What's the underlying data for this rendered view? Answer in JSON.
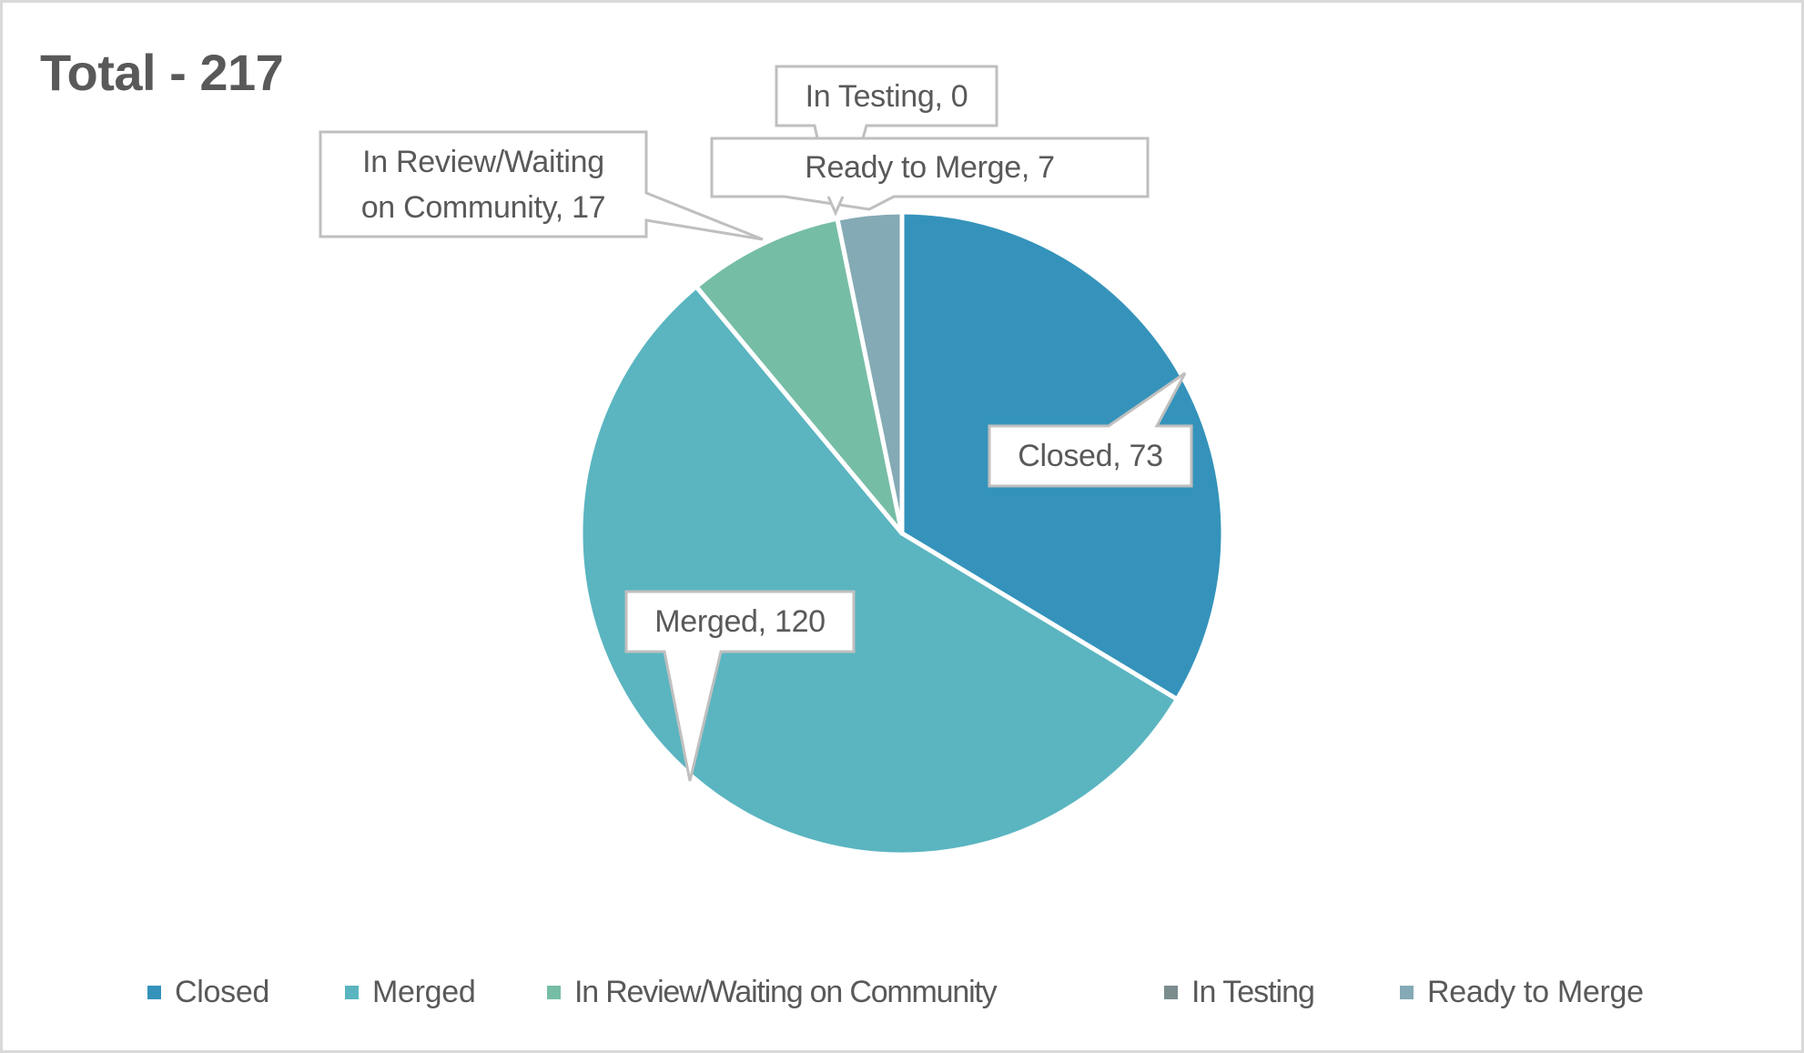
{
  "chart_data": {
    "type": "pie",
    "title": "Total - 217",
    "total": 217,
    "categories": [
      "Closed",
      "Merged",
      "In Review/Waiting on Community",
      "In Testing",
      "Ready to Merge"
    ],
    "values": [
      73,
      120,
      17,
      0,
      7
    ],
    "colors": [
      "#3593bb",
      "#5ab5c0",
      "#76bda6",
      "#7b8c8f",
      "#84aab5"
    ],
    "data_labels": [
      "Closed, 73",
      "Merged, 120",
      "In Review/Waiting on Community, 17",
      "In Testing, 0",
      "Ready to Merge, 7"
    ],
    "start_angle_deg": 0,
    "direction": "clockwise",
    "legend_position": "bottom"
  },
  "title": "Total - 217",
  "labels": {
    "closed": "Closed, 73",
    "merged": "Merged, 120",
    "in_review_line1": "In Review/Waiting",
    "in_review_line2": "on Community, 17",
    "in_testing": "In Testing, 0",
    "ready_to_merge": "Ready to Merge, 7"
  },
  "legend": [
    {
      "label": "Closed",
      "color": "#3593bb"
    },
    {
      "label": "Merged",
      "color": "#5ab5c0"
    },
    {
      "label": "In Review/Waiting on Community",
      "color": "#76bda6"
    },
    {
      "label": "In Testing",
      "color": "#7b8c8f"
    },
    {
      "label": "Ready to Merge",
      "color": "#84aab5"
    }
  ]
}
